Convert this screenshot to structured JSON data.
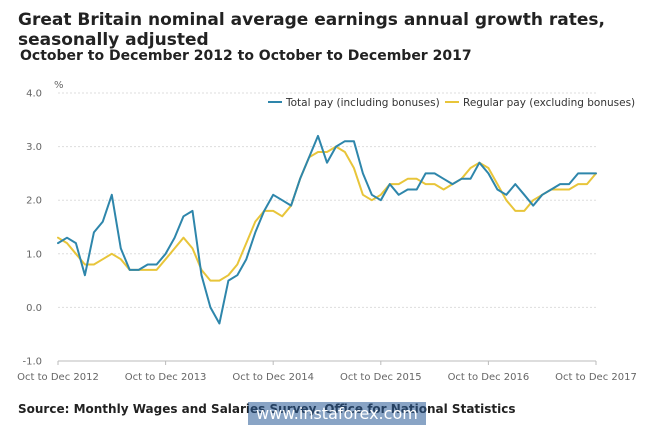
{
  "header": {
    "title": "Great Britain nominal average earnings annual growth rates, seasonally adjusted",
    "subtitle": "October to December 2012 to October to December 2017"
  },
  "footer": {
    "source": "Source: Monthly Wages and Salaries Survey, Office for National Statistics",
    "watermark": "www.instaforex.com"
  },
  "colors": {
    "total": "#2e86ab",
    "regular": "#e8c53a",
    "grid": "#dddddd",
    "axis": "#bbbbbb"
  },
  "chart_data": {
    "type": "line",
    "title": "Great Britain nominal average earnings annual growth rates, seasonally adjusted",
    "subtitle": "October to December 2012 to October to December 2017",
    "ylabel": "%",
    "xlabel": "",
    "ylim": [
      -1.0,
      4.0
    ],
    "yticks": [
      "-1.0",
      "0.0",
      "1.0",
      "2.0",
      "3.0",
      "4.0"
    ],
    "ytick_values": [
      -1,
      0,
      1,
      2,
      3,
      4
    ],
    "xtick_labels": [
      {
        "label": "Oct to Dec 2012",
        "index": 0
      },
      {
        "label": "Oct to Dec 2013",
        "index": 12
      },
      {
        "label": "Oct to Dec 2014",
        "index": 24
      },
      {
        "label": "Oct to Dec 2015",
        "index": 36
      },
      {
        "label": "Oct to Dec 2016",
        "index": 48
      },
      {
        "label": "Oct to Dec 2017",
        "index": 60
      }
    ],
    "grid": true,
    "legend_position": "top-right",
    "series": [
      {
        "name": "Total pay (including bonuses)",
        "color": "#2e86ab",
        "values": [
          1.2,
          1.3,
          1.2,
          0.6,
          1.4,
          1.6,
          2.1,
          1.1,
          0.7,
          0.7,
          0.8,
          0.8,
          1.0,
          1.3,
          1.7,
          1.8,
          0.6,
          0.0,
          -0.3,
          0.5,
          0.6,
          0.9,
          1.4,
          1.8,
          2.1,
          2.0,
          1.9,
          2.4,
          2.8,
          3.2,
          2.7,
          3.0,
          3.1,
          3.1,
          2.5,
          2.1,
          2.0,
          2.3,
          2.1,
          2.2,
          2.2,
          2.5,
          2.5,
          2.4,
          2.3,
          2.4,
          2.4,
          2.7,
          2.5,
          2.2,
          2.1,
          2.3,
          2.1,
          1.9,
          2.1,
          2.2,
          2.3,
          2.3,
          2.5,
          2.5,
          2.5
        ]
      },
      {
        "name": "Regular pay (excluding bonuses)",
        "color": "#e8c53a",
        "values": [
          1.3,
          1.2,
          1.0,
          0.8,
          0.8,
          0.9,
          1.0,
          0.9,
          0.7,
          0.7,
          0.7,
          0.7,
          0.9,
          1.1,
          1.3,
          1.1,
          0.7,
          0.5,
          0.5,
          0.6,
          0.8,
          1.2,
          1.6,
          1.8,
          1.8,
          1.7,
          1.9,
          2.4,
          2.8,
          2.9,
          2.9,
          3.0,
          2.9,
          2.6,
          2.1,
          2.0,
          2.1,
          2.3,
          2.3,
          2.4,
          2.4,
          2.3,
          2.3,
          2.2,
          2.3,
          2.4,
          2.6,
          2.7,
          2.6,
          2.3,
          2.0,
          1.8,
          1.8,
          2.0,
          2.1,
          2.2,
          2.2,
          2.2,
          2.3,
          2.3,
          2.5
        ]
      }
    ]
  }
}
